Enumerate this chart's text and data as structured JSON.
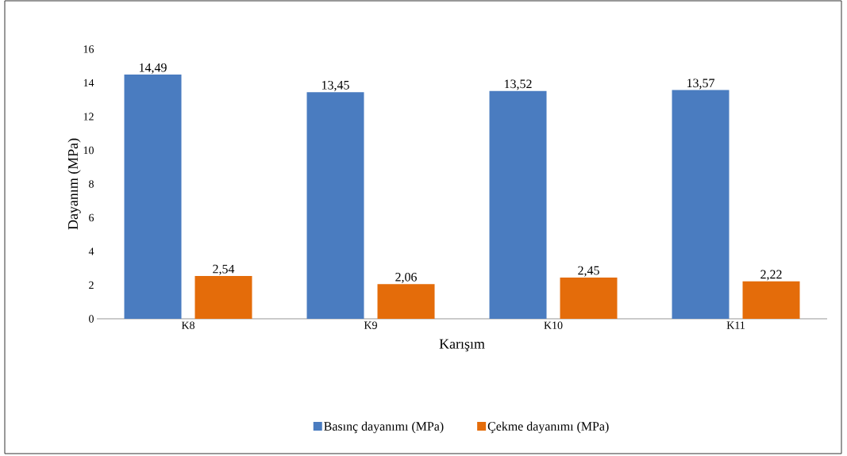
{
  "chart_data": {
    "type": "bar",
    "xlabel": "Karışım",
    "ylabel": "Dayanım (MPa)",
    "categories": [
      "K8",
      "K9",
      "K10",
      "K11"
    ],
    "series": [
      {
        "name": "Basınç dayanımı (MPa)",
        "color": "#4a7cc0",
        "values": [
          14.49,
          13.45,
          13.52,
          13.57
        ],
        "value_labels": [
          "14,49",
          "13,45",
          "13,52",
          "13,57"
        ]
      },
      {
        "name": "Çekme dayanımı (MPa)",
        "color": "#e46c0a",
        "values": [
          2.54,
          2.06,
          2.45,
          2.22
        ],
        "value_labels": [
          "2,54",
          "2,06",
          "2,45",
          "2,22"
        ]
      }
    ],
    "ylim": [
      0,
      16
    ],
    "yticks": [
      0,
      2,
      4,
      6,
      8,
      10,
      12,
      14,
      16
    ],
    "grid": false,
    "legend": "bottom"
  }
}
